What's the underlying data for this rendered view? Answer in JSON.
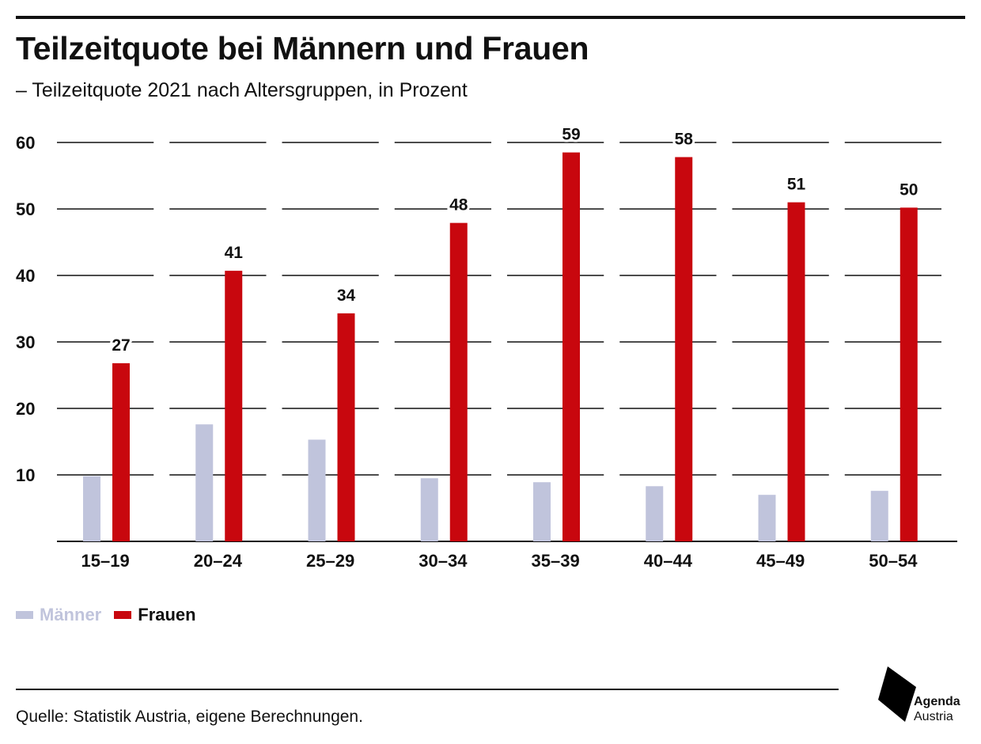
{
  "header": {
    "title": "Teilzeitquote bei Männern und Frauen",
    "subtitle": "– Teilzeitquote 2021 nach Altersgruppen, in Prozent"
  },
  "chart_data": {
    "type": "bar",
    "categories": [
      "15–19",
      "20–24",
      "25–29",
      "30–34",
      "35–39",
      "40–44",
      "45–49",
      "50–54"
    ],
    "series": [
      {
        "name": "Männer",
        "color": "#c0c4dc",
        "values": [
          9.8,
          17.6,
          15.3,
          9.5,
          8.9,
          8.3,
          7.0,
          7.6
        ],
        "labels": []
      },
      {
        "name": "Frauen",
        "color": "#c8070e",
        "values": [
          26.8,
          40.7,
          34.3,
          47.9,
          58.5,
          57.8,
          51.0,
          50.2
        ],
        "labels": [
          "27",
          "41",
          "34",
          "48",
          "59",
          "58",
          "51",
          "50"
        ]
      }
    ],
    "yticks": [
      "10",
      "20",
      "30",
      "40",
      "50",
      "60"
    ],
    "ylim": [
      0,
      60
    ],
    "grid": true,
    "legend": "bottom-left"
  },
  "footer": {
    "source": "Quelle: Statistik Austria, eigene Berechnungen.",
    "logo_line1": "Agenda",
    "logo_line2": "Austria",
    "logo_icon": "agenda-austria-logo-icon"
  }
}
